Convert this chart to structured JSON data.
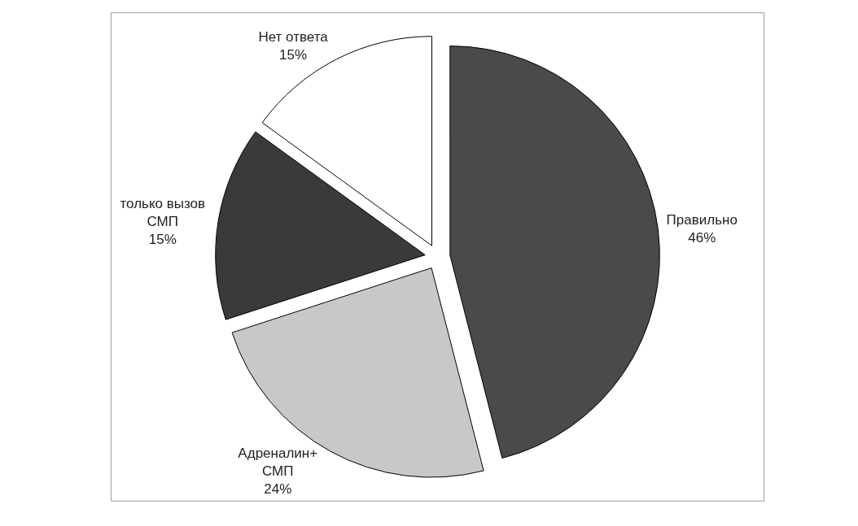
{
  "chart_data": {
    "type": "pie",
    "categories": [
      "Правильно",
      "Адреналин+\nСМП",
      "только вызов\nСМП",
      "Нет ответа"
    ],
    "values": [
      46,
      24,
      15,
      15
    ],
    "value_labels": [
      "46%",
      "24%",
      "15%",
      "15%"
    ],
    "colors": [
      "#4a4a4a",
      "#c8c8c8",
      "#3a3a3a",
      "#ffffff"
    ],
    "legend": false
  }
}
